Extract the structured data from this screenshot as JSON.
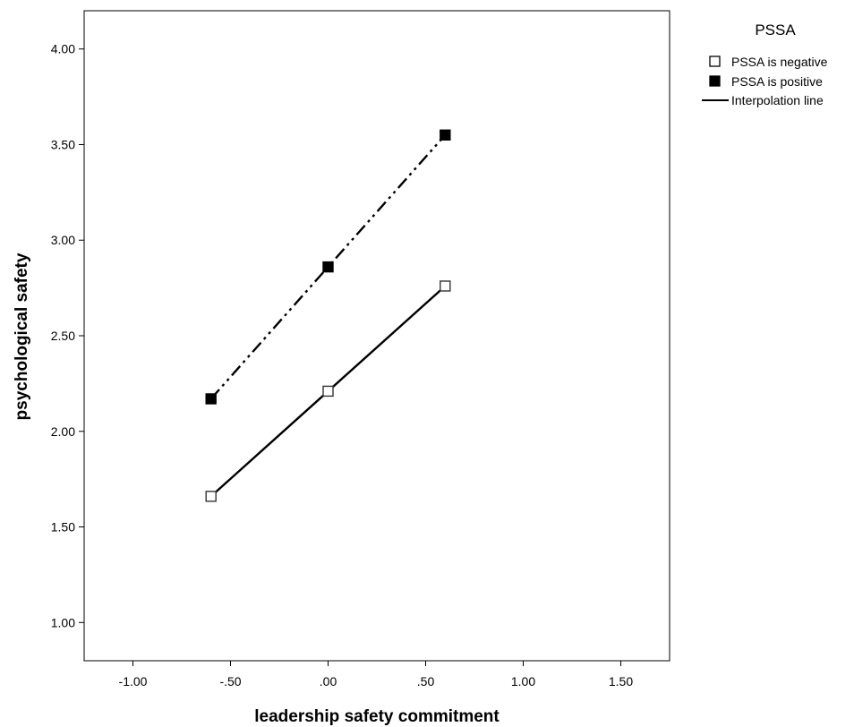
{
  "chart_data": {
    "type": "line",
    "xlabel": "leadership safety commitment",
    "ylabel": "psychological safety",
    "xlim": [
      -1.25,
      1.75
    ],
    "ylim": [
      0.8,
      4.2
    ],
    "x_ticks": [
      -1.0,
      -0.5,
      0.0,
      0.5,
      1.0,
      1.5
    ],
    "x_tick_labels": [
      "-1.00",
      "-.50",
      ".00",
      ".50",
      "1.00",
      "1.50"
    ],
    "y_ticks": [
      1.0,
      1.5,
      2.0,
      2.5,
      3.0,
      3.5,
      4.0
    ],
    "y_tick_labels": [
      "1.00",
      "1.50",
      "2.00",
      "2.50",
      "3.00",
      "3.50",
      "4.00"
    ],
    "grid": false,
    "legend": {
      "title": "PSSA",
      "position": "right",
      "entries": [
        "PSSA is negative",
        "PSSA is positive",
        "Interpolation line"
      ]
    },
    "series": [
      {
        "name": "PSSA is negative",
        "marker": "square-open",
        "line_style": "solid",
        "x": [
          -0.6,
          0.0,
          0.6
        ],
        "y": [
          1.66,
          2.21,
          2.76
        ]
      },
      {
        "name": "PSSA is positive",
        "marker": "square-filled",
        "line_style": "dash-dot-dot",
        "x": [
          -0.6,
          0.0,
          0.6
        ],
        "y": [
          2.17,
          2.86,
          3.55
        ]
      }
    ]
  }
}
